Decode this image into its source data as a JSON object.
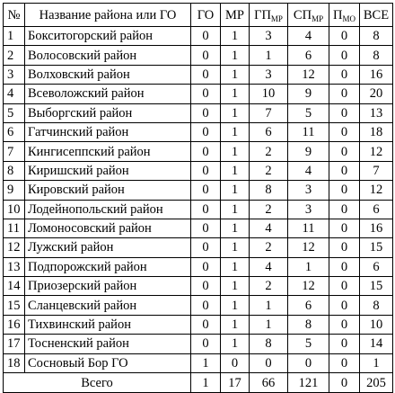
{
  "headers": {
    "idx": "№",
    "name": "Название района или ГО",
    "go": "ГО",
    "mr": "МР",
    "gp_main": "ГП",
    "gp_sub": "МР",
    "sp_main": "СП",
    "sp_sub": "МР",
    "p_main": "П",
    "p_sub": "МО",
    "total": "ВСЕ"
  },
  "rows": [
    {
      "idx": "1",
      "name": "Бокситогорский район",
      "go": "0",
      "mr": "1",
      "gp": "3",
      "sp": "4",
      "p": "0",
      "all": "8"
    },
    {
      "idx": "2",
      "name": "Волосовский район",
      "go": "0",
      "mr": "1",
      "gp": "1",
      "sp": "6",
      "p": "0",
      "all": "8"
    },
    {
      "idx": "3",
      "name": "Волховский район",
      "go": "0",
      "mr": "1",
      "gp": "3",
      "sp": "12",
      "p": "0",
      "all": "16"
    },
    {
      "idx": "4",
      "name": "Всеволожский район",
      "go": "0",
      "mr": "1",
      "gp": "10",
      "sp": "9",
      "p": "0",
      "all": "20"
    },
    {
      "idx": "5",
      "name": "Выборгский район",
      "go": "0",
      "mr": "1",
      "gp": "7",
      "sp": "5",
      "p": "0",
      "all": "13"
    },
    {
      "idx": "6",
      "name": "Гатчинский район",
      "go": "0",
      "mr": "1",
      "gp": "6",
      "sp": "11",
      "p": "0",
      "all": "18"
    },
    {
      "idx": "7",
      "name": "Кингисеппский район",
      "go": "0",
      "mr": "1",
      "gp": "2",
      "sp": "9",
      "p": "0",
      "all": "12"
    },
    {
      "idx": "8",
      "name": "Киришский район",
      "go": "0",
      "mr": "1",
      "gp": "2",
      "sp": "4",
      "p": "0",
      "all": "7"
    },
    {
      "idx": "9",
      "name": "Кировский район",
      "go": "0",
      "mr": "1",
      "gp": "8",
      "sp": "3",
      "p": "0",
      "all": "12"
    },
    {
      "idx": "10",
      "name": "Лодейнопольский район",
      "go": "0",
      "mr": "1",
      "gp": "2",
      "sp": "3",
      "p": "0",
      "all": "6"
    },
    {
      "idx": "11",
      "name": "Ломоносовский район",
      "go": "0",
      "mr": "1",
      "gp": "4",
      "sp": "11",
      "p": "0",
      "all": "16"
    },
    {
      "idx": "12",
      "name": "Лужский район",
      "go": "0",
      "mr": "1",
      "gp": "2",
      "sp": "12",
      "p": "0",
      "all": "15"
    },
    {
      "idx": "13",
      "name": "Подпорожский район",
      "go": "0",
      "mr": "1",
      "gp": "4",
      "sp": "1",
      "p": "0",
      "all": "6"
    },
    {
      "idx": "14",
      "name": "Приозерский район",
      "go": "0",
      "mr": "1",
      "gp": "2",
      "sp": "12",
      "p": "0",
      "all": "15"
    },
    {
      "idx": "15",
      "name": "Сланцевский район",
      "go": "0",
      "mr": "1",
      "gp": "1",
      "sp": "6",
      "p": "0",
      "all": "8"
    },
    {
      "idx": "16",
      "name": "Тихвинский район",
      "go": "0",
      "mr": "1",
      "gp": "1",
      "sp": "8",
      "p": "0",
      "all": "10"
    },
    {
      "idx": "17",
      "name": "Тосненский район",
      "go": "0",
      "mr": "1",
      "gp": "8",
      "sp": "5",
      "p": "0",
      "all": "14"
    },
    {
      "idx": "18",
      "name": "Сосновый Бор ГО",
      "go": "1",
      "mr": "0",
      "gp": "0",
      "sp": "0",
      "p": "0",
      "all": "1"
    }
  ],
  "totals": {
    "label": "Всего",
    "go": "1",
    "mr": "17",
    "gp": "66",
    "sp": "121",
    "p": "0",
    "all": "205"
  }
}
